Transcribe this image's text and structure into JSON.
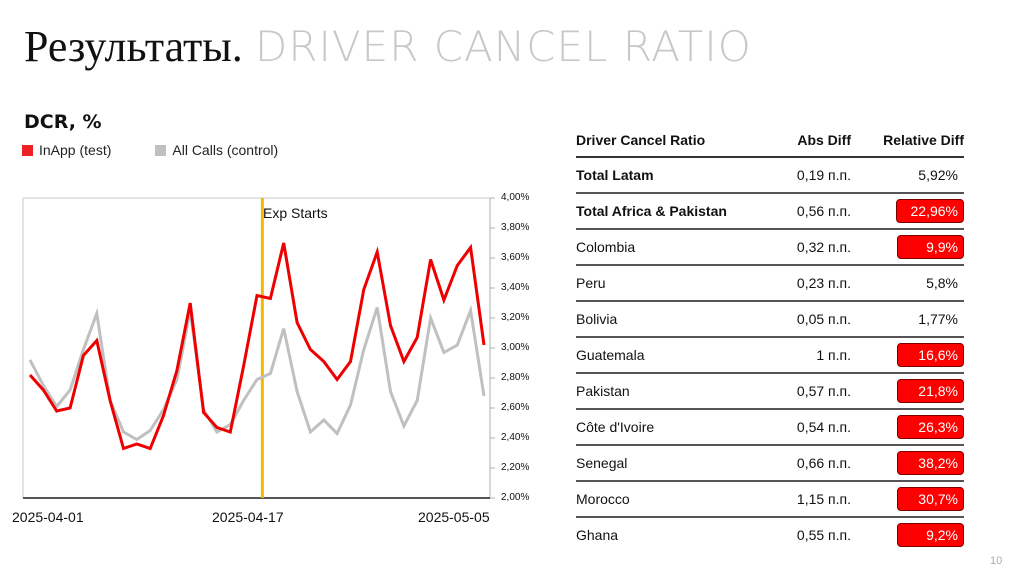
{
  "slide": {
    "title_ru": "Результаты.",
    "title_en": "DRIVER CANCEL RATIO",
    "page_number": "10"
  },
  "colors": {
    "test": "#ee0000",
    "control": "#c0c0c0",
    "exp_marker": "#f5b800",
    "highlight": "#ff0000"
  },
  "chart_data": {
    "type": "line",
    "title": "DCR, %",
    "legend": [
      "InApp (test)",
      "All Calls (control)"
    ],
    "legend_position": "top-left",
    "xlabel": "",
    "ylabel": "",
    "x_tick_labels": [
      "2025-04-01",
      "2025-04-17",
      "2025-05-05"
    ],
    "y_tick_labels": [
      "4,00%",
      "3,80%",
      "3,60%",
      "3,40%",
      "3,20%",
      "3,00%",
      "2,80%",
      "2,60%",
      "2,40%",
      "2,20%",
      "2,00%"
    ],
    "ylim": [
      2.0,
      4.0
    ],
    "y_axis_position": "right",
    "grid": false,
    "annotation": {
      "label": "Exp Starts",
      "x_index": 17.4,
      "color": "#f5b800"
    },
    "x_count": 35,
    "series": [
      {
        "name": "InApp (test)",
        "color": "#ee0000",
        "values": [
          2.82,
          2.72,
          2.58,
          2.6,
          2.95,
          3.05,
          2.65,
          2.33,
          2.36,
          2.33,
          2.55,
          2.85,
          3.3,
          2.57,
          2.47,
          2.44,
          2.88,
          3.35,
          3.33,
          3.7,
          3.17,
          2.99,
          2.91,
          2.79,
          2.91,
          3.39,
          3.64,
          3.15,
          2.91,
          3.07,
          3.59,
          3.32,
          3.55,
          3.67,
          3.02
        ]
      },
      {
        "name": "All Calls (control)",
        "color": "#c0c0c0",
        "values": [
          2.92,
          2.75,
          2.61,
          2.72,
          2.99,
          3.23,
          2.65,
          2.44,
          2.39,
          2.45,
          2.59,
          2.79,
          3.25,
          2.59,
          2.44,
          2.49,
          2.65,
          2.79,
          2.83,
          3.13,
          2.71,
          2.44,
          2.52,
          2.43,
          2.62,
          2.99,
          3.27,
          2.71,
          2.48,
          2.65,
          3.2,
          2.97,
          3.02,
          3.25,
          2.68
        ]
      }
    ]
  },
  "chart_ui": {
    "title": "DCR, %",
    "legend_test": "InApp (test)",
    "legend_control": "All Calls (control)",
    "exp_label": "Exp Starts",
    "x_labels": [
      "2025-04-01",
      "2025-04-17",
      "2025-05-05"
    ],
    "y_labels": [
      "4,00%",
      "3,80%",
      "3,60%",
      "3,40%",
      "3,20%",
      "3,00%",
      "2,80%",
      "2,60%",
      "2,40%",
      "2,20%",
      "2,00%"
    ]
  },
  "table": {
    "headers": [
      "Driver Cancel Ratio",
      "Abs Diff",
      "Relative Diff"
    ],
    "rows": [
      {
        "name": "Total Latam",
        "abs": "0,19 п.п.",
        "rel": "5,92%",
        "bold": true,
        "highlight": false
      },
      {
        "name": "Total Africa & Pakistan",
        "abs": "0,56 п.п.",
        "rel": "22,96%",
        "bold": true,
        "highlight": true
      },
      {
        "name": "Colombia",
        "abs": "0,32 п.п.",
        "rel": "9,9%",
        "bold": false,
        "highlight": true
      },
      {
        "name": "Peru",
        "abs": "0,23 п.п.",
        "rel": "5,8%",
        "bold": false,
        "highlight": false
      },
      {
        "name": "Bolivia",
        "abs": "0,05 п.п.",
        "rel": "1,77%",
        "bold": false,
        "highlight": false
      },
      {
        "name": "Guatemala",
        "abs": "1 п.п.",
        "rel": "16,6%",
        "bold": false,
        "highlight": true
      },
      {
        "name": "Pakistan",
        "abs": "0,57 п.п.",
        "rel": "21,8%",
        "bold": false,
        "highlight": true
      },
      {
        "name": "Côte d'Ivoire",
        "abs": "0,54 п.п.",
        "rel": "26,3%",
        "bold": false,
        "highlight": true
      },
      {
        "name": "Senegal",
        "abs": "0,66 п.п.",
        "rel": "38,2%",
        "bold": false,
        "highlight": true
      },
      {
        "name": "Morocco",
        "abs": "1,15 п.п.",
        "rel": "30,7%",
        "bold": false,
        "highlight": true
      },
      {
        "name": "Ghana",
        "abs": "0,55 п.п.",
        "rel": "9,2%",
        "bold": false,
        "highlight": true
      }
    ]
  }
}
